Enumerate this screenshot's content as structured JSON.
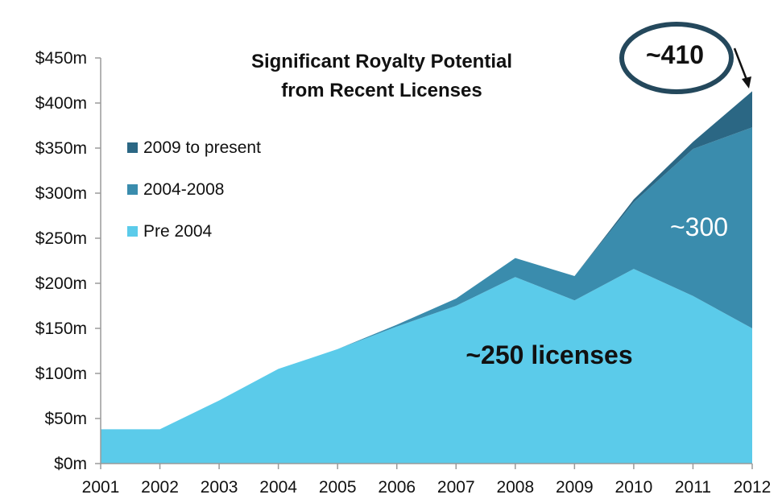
{
  "chart_data": {
    "type": "area",
    "stacked": true,
    "title": [
      "Significant Royalty Potential",
      "from Recent Licenses"
    ],
    "categories": [
      "2001",
      "2002",
      "2003",
      "2004",
      "2005",
      "2006",
      "2007",
      "2008",
      "2009",
      "2010",
      "2011",
      "2012"
    ],
    "series": [
      {
        "name": "Pre 2004",
        "color": "#5bcbea",
        "values": [
          38,
          38,
          70,
          105,
          127,
          152,
          175,
          207,
          181,
          216,
          186,
          150
        ]
      },
      {
        "name": "2004-2008",
        "color": "#3a8cad",
        "values": [
          0,
          0,
          0,
          0,
          0,
          2,
          8,
          21,
          27,
          74,
          163,
          223
        ]
      },
      {
        "name": "2009 to present",
        "color": "#2b6784",
        "values": [
          0,
          0,
          0,
          0,
          0,
          0,
          0,
          0,
          0,
          3,
          8,
          40
        ]
      }
    ],
    "legend_order": [
      "2009 to present",
      "2004-2008",
      "Pre 2004"
    ],
    "legend_position": "left",
    "ylim": [
      0,
      450
    ],
    "yticks": [
      0,
      50,
      100,
      150,
      200,
      250,
      300,
      350,
      400,
      450
    ],
    "ytick_labels": [
      "$0m",
      "$50m",
      "$100m",
      "$150m",
      "$200m",
      "$250m",
      "$300m",
      "$350m",
      "$400m",
      "$450m"
    ],
    "grid": false,
    "annotations": {
      "circled": "~410",
      "mid_series": "~300",
      "bottom_series": "~250 licenses"
    }
  }
}
